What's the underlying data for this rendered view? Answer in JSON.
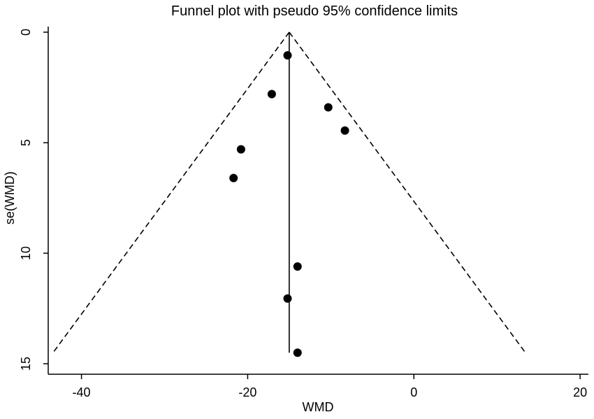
{
  "chart_data": {
    "type": "scatter",
    "title": "Funnel plot with pseudo 95% confidence limits",
    "xlabel": "WMD",
    "ylabel": "se(WMD)",
    "xlim": [
      -44,
      21
    ],
    "ylim": [
      0,
      15.3
    ],
    "y_reversed": true,
    "xticks": [
      -40,
      -20,
      0,
      20
    ],
    "yticks": [
      0,
      5,
      10,
      15
    ],
    "grid": false,
    "pooled_estimate": -15,
    "max_se": 14.5,
    "points": [
      {
        "x": -15.2,
        "y": 1.05
      },
      {
        "x": -17.1,
        "y": 2.8
      },
      {
        "x": -10.3,
        "y": 3.4
      },
      {
        "x": -8.3,
        "y": 4.45
      },
      {
        "x": -20.8,
        "y": 5.3
      },
      {
        "x": -21.7,
        "y": 6.6
      },
      {
        "x": -14.0,
        "y": 10.6
      },
      {
        "x": -15.2,
        "y": 12.05
      },
      {
        "x": -14.0,
        "y": 14.5
      }
    ],
    "colors": {
      "points": "#000000",
      "lines": "#000000"
    }
  }
}
